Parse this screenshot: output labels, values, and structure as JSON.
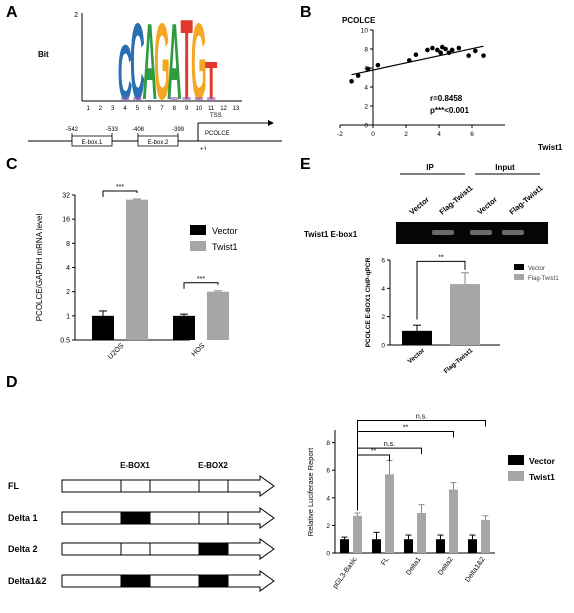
{
  "panel_labels": {
    "A": "A",
    "B": "B",
    "C": "C",
    "D": "D",
    "E": "E"
  },
  "colors": {
    "vector": "#000000",
    "twist": "#a6a6a6",
    "ecolor": "#333333",
    "logo_C": "#2a6fb3",
    "logo_A": "#2e9b3e",
    "logo_G": "#f5a623",
    "logo_T": "#e2382b"
  },
  "chart_data": [
    {
      "id": "A",
      "type": "sequence-logo",
      "ylabel": "Bit",
      "y_top_tick": "2",
      "x_ticks": [
        "1",
        "2",
        "3",
        "4",
        "5",
        "6",
        "7",
        "8",
        "9",
        "10",
        "11",
        "12",
        "13"
      ],
      "logo_letters": [
        {
          "pos": 4,
          "letter": "C",
          "bits": 1.3
        },
        {
          "pos": 5,
          "letter": "C",
          "bits": 1.8
        },
        {
          "pos": 6,
          "letter": "A",
          "bits": 1.8
        },
        {
          "pos": 7,
          "letter": "G",
          "bits": 1.8
        },
        {
          "pos": 8,
          "letter": "A",
          "bits": 1.8
        },
        {
          "pos": 9,
          "letter": "T",
          "bits": 1.9
        },
        {
          "pos": 10,
          "letter": "G",
          "bits": 1.8
        },
        {
          "pos": 11,
          "letter": "T",
          "bits": 0.9
        }
      ],
      "promoter": {
        "tss_label": "TSS",
        "gene_label": "PCOLCE",
        "plus1": "+1",
        "boxes": [
          {
            "name": "E-box.1",
            "start": "-542",
            "end": "-533"
          },
          {
            "name": "E-box.2",
            "start": "-408",
            "end": "-399"
          }
        ]
      }
    },
    {
      "id": "B",
      "type": "scatter",
      "title": "PCOLCE",
      "xlabel": "Twist1",
      "xlim": [
        -2,
        8
      ],
      "ylim": [
        0,
        10
      ],
      "xticks": [
        "-2",
        "0",
        "2",
        "4",
        "6"
      ],
      "yticks": [
        "0",
        "2",
        "4",
        "6",
        "8",
        "10"
      ],
      "annotation_r": "r=0.8458",
      "annotation_p": "p***<0.001",
      "points": [
        [
          -1.3,
          4.6
        ],
        [
          -0.9,
          5.2
        ],
        [
          -0.3,
          5.9
        ],
        [
          0.3,
          6.3
        ],
        [
          2.2,
          6.8
        ],
        [
          2.6,
          7.4
        ],
        [
          3.3,
          7.9
        ],
        [
          3.6,
          8.1
        ],
        [
          3.9,
          7.9
        ],
        [
          4.1,
          7.6
        ],
        [
          4.2,
          8.2
        ],
        [
          4.4,
          8.0
        ],
        [
          4.6,
          7.6
        ],
        [
          4.8,
          7.9
        ],
        [
          5.2,
          8.1
        ],
        [
          5.8,
          7.3
        ],
        [
          6.2,
          7.8
        ],
        [
          6.7,
          7.3
        ]
      ],
      "regression": [
        [
          -1.3,
          5.3
        ],
        [
          6.7,
          8.3
        ]
      ]
    },
    {
      "id": "C",
      "type": "bar",
      "ylabel": "PCOLCE/GAPDH mRNA level",
      "yscale": "log2",
      "yticks": [
        "0.5",
        "1",
        "2",
        "4",
        "8",
        "16",
        "32"
      ],
      "categories": [
        "U2OS",
        "HOS"
      ],
      "series": [
        {
          "name": "Vector",
          "values": [
            1.0,
            1.0
          ],
          "errors": [
            0.15,
            0.05
          ]
        },
        {
          "name": "Twist1",
          "values": [
            28,
            2.0
          ],
          "errors": [
            0.5,
            0.05
          ]
        }
      ],
      "significance": [
        "***",
        "***"
      ]
    },
    {
      "id": "E",
      "type": "bar",
      "gel": {
        "ip_label": "IP",
        "input_label": "Input",
        "lanes": [
          "Vector",
          "Flag-Twist1",
          "Vector",
          "Flag-Twist1"
        ],
        "row_label": "Twist1 E-box1"
      },
      "ylabel": "PCOLCE E-BOX1 ChIP-qPCR",
      "ylim": [
        0,
        6
      ],
      "yticks": [
        "0",
        "2",
        "4",
        "6"
      ],
      "categories": [
        "Vector",
        "Flag-Twist1"
      ],
      "values": [
        1.0,
        4.3
      ],
      "errors": [
        0.4,
        0.8
      ],
      "legend": [
        "Vector",
        "Flag-Twist1"
      ],
      "significance": "**"
    },
    {
      "id": "D",
      "type": "bar",
      "constructs": {
        "rows": [
          "FL",
          "Delta 1",
          "Delta 2",
          "Delta1&2"
        ],
        "box_labels": [
          "E-BOX1",
          "E-BOX2"
        ],
        "deleted": [
          [
            false,
            false
          ],
          [
            true,
            false
          ],
          [
            false,
            true
          ],
          [
            true,
            true
          ]
        ]
      },
      "ylabel": "Relative Luciferase Report",
      "ylim": [
        0,
        10
      ],
      "yticks": [
        "0",
        "2",
        "4",
        "6",
        "8",
        "10"
      ],
      "categories": [
        "pGL3-Basic",
        "FL",
        "Delta1",
        "Delta2",
        "Delta1&2"
      ],
      "series": [
        {
          "name": "Vector",
          "values": [
            1.0,
            1.0,
            1.0,
            1.0,
            1.0
          ],
          "errors": [
            0.15,
            0.5,
            0.3,
            0.3,
            0.3
          ]
        },
        {
          "name": "Twist1",
          "values": [
            2.7,
            5.7,
            2.9,
            4.6,
            2.4
          ],
          "errors": [
            0.2,
            1.0,
            0.6,
            0.5,
            0.3
          ]
        }
      ],
      "significance": [
        "**",
        "n.s.",
        "**",
        "n.s."
      ]
    }
  ]
}
